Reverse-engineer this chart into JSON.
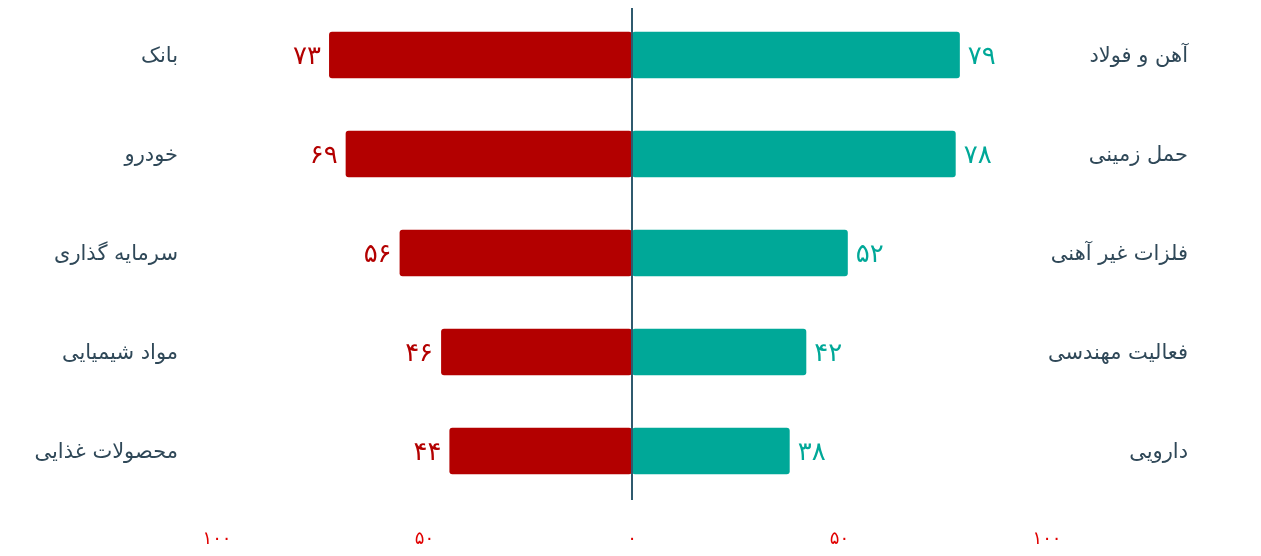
{
  "chart_data": [
    {
      "type": "bar",
      "orientation": "horizontal",
      "categories": [
        "بانک",
        "خودرو",
        "سرمایه گذاری",
        "مواد شیمیایی",
        "محصولات غذایی"
      ],
      "values": [
        73,
        69,
        56,
        46,
        44
      ],
      "value_labels": [
        "۷۳",
        "۶۹",
        "۵۶",
        "۴۶",
        "۴۴"
      ],
      "color": "#b30000",
      "xlim": [
        100,
        0
      ],
      "xticks": [
        {
          "value": 100,
          "label": "۱۰۰"
        },
        {
          "value": 50,
          "label": "۵۰"
        }
      ]
    },
    {
      "type": "bar",
      "orientation": "horizontal",
      "categories": [
        "آهن و فولاد",
        "حمل زمینی",
        "فلزات غیر آهنی",
        "فعالیت مهندسی",
        "دارویی"
      ],
      "values": [
        79,
        78,
        52,
        42,
        38
      ],
      "value_labels": [
        "۷۹",
        "۷۸",
        "۵۲",
        "۴۲",
        "۳۸"
      ],
      "color": "#00a898",
      "xlim": [
        0,
        100
      ],
      "xticks": [
        {
          "value": 0,
          "label": "۰"
        },
        {
          "value": 50,
          "label": "۵۰"
        },
        {
          "value": 100,
          "label": "۱۰۰"
        }
      ]
    }
  ]
}
